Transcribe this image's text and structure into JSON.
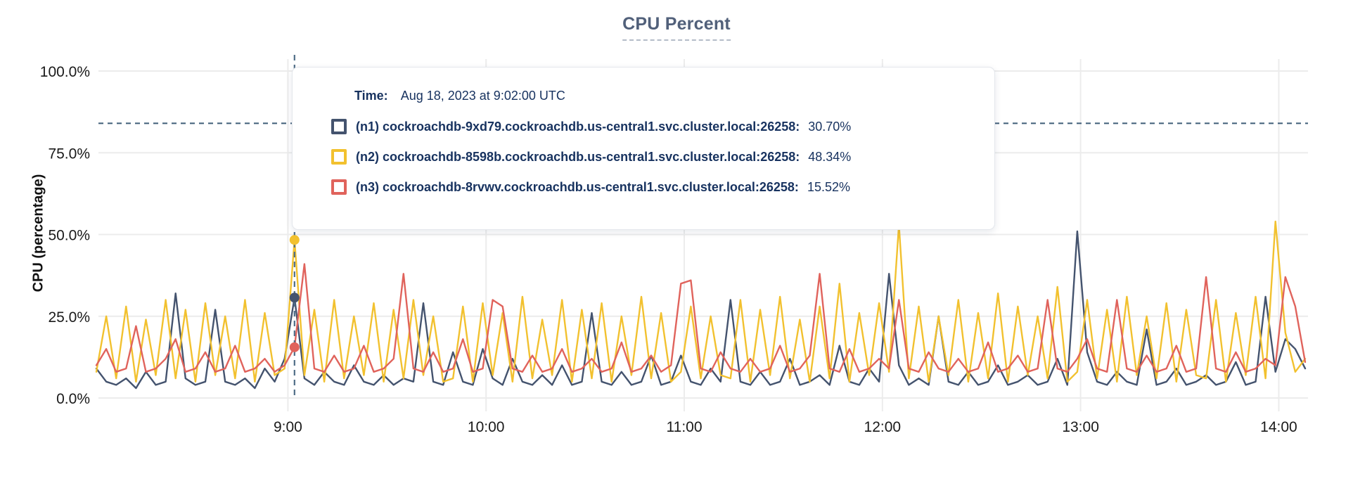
{
  "title": "CPU Percent",
  "y_axis_label": "CPU (percentage)",
  "tooltip": {
    "time_label": "Time:",
    "time_value": "Aug 18, 2023 at 9:02:00 UTC",
    "rows": [
      {
        "name": "(n1) cockroachdb-9xd79.cockroachdb.us-central1.svc.cluster.local:26258:",
        "value": "30.70%"
      },
      {
        "name": "(n2) cockroachdb-8598b.cockroachdb.us-central1.svc.cluster.local:26258:",
        "value": "48.34%"
      },
      {
        "name": "(n3) cockroachdb-8rvwv.cockroachdb.us-central1.svc.cluster.local:26258:",
        "value": "15.52%"
      }
    ]
  },
  "colors": {
    "grid": "#ececec",
    "threshold_line": "#3f5d78",
    "hover_line": "#4f6d87",
    "title": "#51607a",
    "axis_text": "#1a1a1a",
    "tooltip_text": "#17325f",
    "tooltip_border": "#e4e7ec",
    "series_n1": "#44536e",
    "series_n2": "#f2c12f",
    "series_n3": "#e0635c"
  },
  "chart_data": {
    "type": "line",
    "title": "CPU Percent",
    "xlabel": "",
    "ylabel": "CPU (percentage)",
    "ylim": [
      0,
      100
    ],
    "grid": true,
    "legend_position": "tooltip-overlay",
    "y_ticks": [
      {
        "value": 0,
        "label": "0.0%"
      },
      {
        "value": 25,
        "label": "25.0%"
      },
      {
        "value": 50,
        "label": "50.0%"
      },
      {
        "value": 75,
        "label": "75.0%"
      },
      {
        "value": 100,
        "label": "100.0%"
      }
    ],
    "x_ticks": [
      {
        "minute": 60,
        "label": "9:00"
      },
      {
        "minute": 120,
        "label": "10:00"
      },
      {
        "minute": 180,
        "label": "11:00"
      },
      {
        "minute": 240,
        "label": "12:00"
      },
      {
        "minute": 300,
        "label": "13:00"
      },
      {
        "minute": 360,
        "label": "14:00"
      }
    ],
    "x_start_min": 2,
    "x_step_min": 3,
    "x_end_min": 368,
    "threshold_percent": 84,
    "hover": {
      "minute": 62,
      "time": "Aug 18, 2023 at 9:02:00 UTC",
      "points": [
        {
          "series": "n1",
          "value": 30.7
        },
        {
          "series": "n2",
          "value": 48.34
        },
        {
          "series": "n3",
          "value": 15.52
        }
      ]
    },
    "series": [
      {
        "id": "n1",
        "name": "(n1) cockroachdb-9xd79.cockroachdb.us-central1.svc.cluster.local:26258",
        "color": "#44536e",
        "values": [
          9,
          5,
          4,
          6,
          3,
          8,
          4,
          5,
          32,
          6,
          4,
          5,
          27,
          5,
          4,
          6,
          3,
          9,
          5,
          12,
          30.7,
          6,
          4,
          8,
          5,
          4,
          10,
          5,
          4,
          7,
          4,
          6,
          5,
          29,
          5,
          4,
          14,
          5,
          4,
          15,
          6,
          4,
          12,
          5,
          4,
          7,
          4,
          10,
          4,
          5,
          26,
          5,
          4,
          8,
          4,
          5,
          13,
          4,
          5,
          13,
          5,
          4,
          9,
          5,
          30,
          5,
          4,
          8,
          4,
          5,
          12,
          4,
          5,
          7,
          4,
          16,
          5,
          4,
          9,
          5,
          38,
          10,
          4,
          6,
          4,
          25,
          5,
          4,
          8,
          4,
          5,
          10,
          4,
          5,
          7,
          4,
          5,
          12,
          4,
          51,
          14,
          5,
          4,
          8,
          5,
          4,
          21,
          4,
          5,
          9,
          4,
          5,
          7,
          4,
          5,
          11,
          4,
          5,
          31,
          8,
          18,
          15,
          9
        ]
      },
      {
        "id": "n2",
        "name": "(n2) cockroachdb-8598b.cockroachdb.us-central1.svc.cluster.local:26258",
        "color": "#f2c12f",
        "values": [
          8,
          25,
          6,
          28,
          5,
          24,
          7,
          30,
          6,
          27,
          5,
          29,
          7,
          25,
          6,
          30,
          5,
          26,
          7,
          9,
          48.34,
          7,
          27,
          5,
          30,
          6,
          25,
          7,
          29,
          5,
          27,
          6,
          30,
          7,
          25,
          5,
          6,
          28,
          5,
          29,
          7,
          26,
          5,
          31,
          6,
          24,
          7,
          30,
          5,
          27,
          6,
          29,
          5,
          25,
          7,
          31,
          6,
          26,
          5,
          8,
          28,
          6,
          25,
          7,
          6,
          30,
          5,
          27,
          7,
          31,
          6,
          24,
          5,
          28,
          6,
          35,
          5,
          26,
          7,
          29,
          8,
          53,
          6,
          28,
          5,
          25,
          7,
          30,
          5,
          26,
          6,
          32,
          5,
          28,
          7,
          25,
          6,
          34,
          5,
          8,
          30,
          6,
          27,
          5,
          31,
          7,
          25,
          6,
          29,
          5,
          27,
          7,
          6,
          30,
          5,
          26,
          7,
          31,
          6,
          54,
          20,
          8,
          12
        ]
      },
      {
        "id": "n3",
        "name": "(n3) cockroachdb-8rvwv.cockroachdb.us-central1.svc.cluster.local:26258",
        "color": "#e0635c",
        "values": [
          10,
          15,
          8,
          9,
          22,
          8,
          9,
          12,
          18,
          8,
          9,
          14,
          8,
          9,
          16,
          8,
          9,
          12,
          8,
          10,
          15.52,
          41,
          9,
          8,
          13,
          8,
          9,
          16,
          8,
          9,
          12,
          38,
          9,
          8,
          14,
          8,
          9,
          18,
          8,
          9,
          30,
          28,
          9,
          8,
          13,
          8,
          9,
          15,
          8,
          9,
          12,
          8,
          9,
          17,
          8,
          9,
          13,
          8,
          10,
          35,
          36,
          9,
          8,
          14,
          9,
          8,
          12,
          8,
          9,
          16,
          8,
          9,
          13,
          38,
          9,
          8,
          15,
          8,
          9,
          12,
          9,
          30,
          9,
          8,
          14,
          9,
          8,
          12,
          8,
          9,
          17,
          8,
          9,
          13,
          8,
          9,
          30,
          9,
          8,
          12,
          18,
          9,
          8,
          30,
          9,
          8,
          13,
          8,
          9,
          16,
          8,
          9,
          37,
          9,
          8,
          14,
          8,
          9,
          12,
          10,
          37,
          28,
          11
        ]
      }
    ]
  }
}
